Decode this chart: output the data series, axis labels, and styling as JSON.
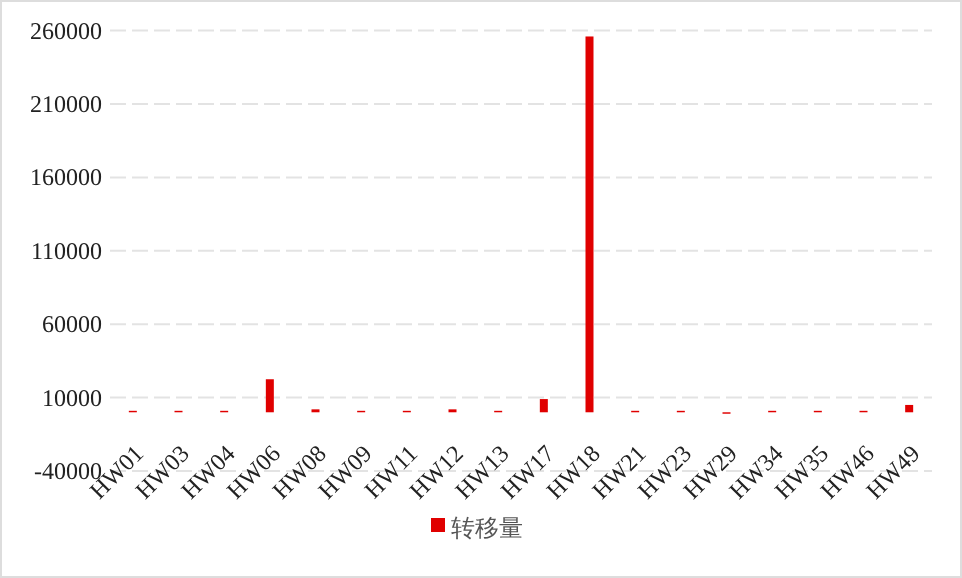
{
  "chart_data": {
    "type": "bar",
    "categories": [
      "HW01",
      "HW03",
      "HW04",
      "HW06",
      "HW08",
      "HW09",
      "HW11",
      "HW12",
      "HW13",
      "HW17",
      "HW18",
      "HW21",
      "HW23",
      "HW29",
      "HW34",
      "HW35",
      "HW46",
      "HW49"
    ],
    "series": [
      {
        "name": "转移量",
        "color": "#e00000",
        "values": [
          1000,
          1000,
          1000,
          22500,
          2000,
          1000,
          1000,
          2000,
          1000,
          9000,
          256000,
          1000,
          1000,
          -1000,
          1000,
          1000,
          1000,
          5000
        ]
      }
    ],
    "ylim": [
      -40000,
      260000
    ],
    "yticks": [
      -40000,
      10000,
      60000,
      110000,
      160000,
      210000,
      260000
    ],
    "grid": "y",
    "legend": "bottom"
  }
}
